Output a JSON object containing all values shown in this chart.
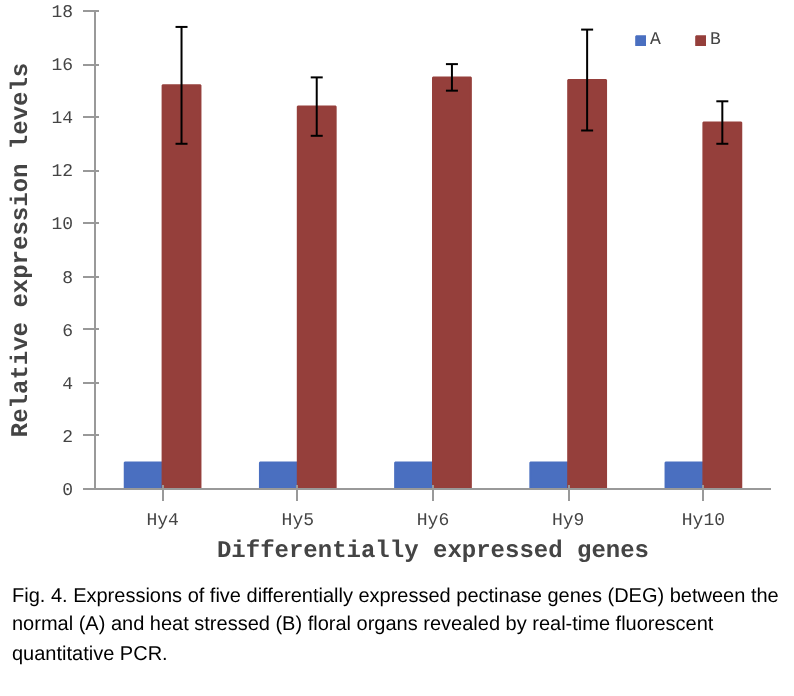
{
  "chart_data": {
    "type": "bar",
    "categories": [
      "Hy4",
      "Hy5",
      "Hy6",
      "Hy9",
      "Hy10"
    ],
    "xlabel": "Differentially expressed genes",
    "ylabel": "Relative expression levels",
    "ylim": [
      0,
      18
    ],
    "yticks": [
      0,
      2,
      4,
      6,
      8,
      10,
      12,
      14,
      16,
      18
    ],
    "series": [
      {
        "name": "A",
        "color": "#4a6fc0",
        "values": [
          1,
          1,
          1,
          1,
          1
        ]
      },
      {
        "name": "B",
        "color": "#953f3b",
        "values": [
          15.2,
          14.4,
          15.5,
          15.4,
          13.8
        ],
        "errors": [
          2.2,
          1.1,
          0.5,
          1.9,
          0.8
        ]
      }
    ],
    "legend": "top right",
    "grid": false,
    "annotations": [
      "Fig. 4. Expressions of five differentially expressed pectinase genes (DEG) between the normal (A) and heat stressed (B) floral organs revealed by real-time fluorescent quantitative PCR."
    ]
  }
}
